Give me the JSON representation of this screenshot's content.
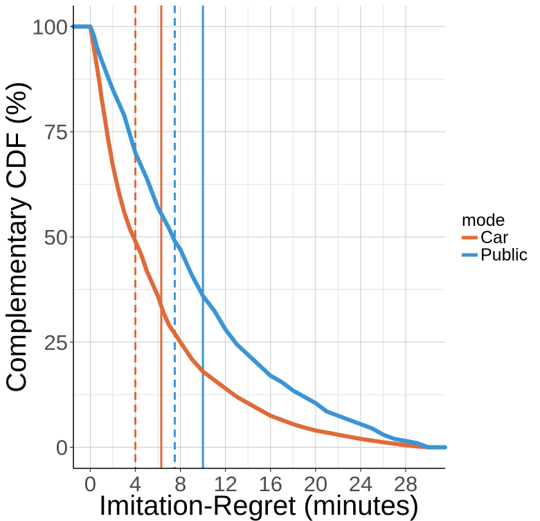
{
  "chart_data": {
    "type": "line",
    "title": "",
    "xlabel": "Imitation-Regret (minutes)",
    "ylabel": "Complementary CDF (%)",
    "xlim": [
      -1.5,
      31.5
    ],
    "ylim": [
      -5,
      105
    ],
    "xticks": [
      0,
      4,
      8,
      12,
      16,
      20,
      24,
      28
    ],
    "yticks": [
      0,
      25,
      50,
      75,
      100
    ],
    "grid": true,
    "legend": {
      "title": "mode",
      "position": "right"
    },
    "series": [
      {
        "name": "Car",
        "color": "#e06a3b",
        "x": [
          -1.5,
          0,
          0.2,
          0.5,
          0.8,
          1,
          1.3,
          1.6,
          2,
          2.5,
          3,
          3.5,
          4,
          4.5,
          5,
          5.5,
          6,
          6.5,
          7,
          7.5,
          8,
          9,
          10,
          11,
          12,
          13,
          14,
          15,
          16,
          17,
          18,
          19,
          20,
          22,
          24,
          26,
          28,
          29,
          30,
          31.5
        ],
        "y": [
          100,
          100,
          97,
          92,
          87,
          83,
          78,
          73,
          67,
          61,
          56,
          52,
          49,
          46,
          42,
          39,
          36,
          32,
          29,
          27,
          25,
          21,
          18,
          16,
          14,
          12,
          10.5,
          9,
          7.5,
          6.5,
          5.5,
          4.7,
          4,
          3,
          2,
          1.2,
          0.5,
          0.2,
          0,
          0
        ]
      },
      {
        "name": "Public",
        "color": "#3a95d6",
        "x": [
          -1.5,
          0,
          0.3,
          0.6,
          1,
          1.5,
          2,
          3,
          4,
          5,
          6,
          7,
          7.5,
          8,
          9,
          10,
          11,
          12,
          13,
          14,
          15,
          16,
          17,
          18,
          19,
          20,
          21,
          22,
          23,
          24,
          25,
          26,
          27,
          28,
          29,
          30,
          31.5
        ],
        "y": [
          100,
          100,
          98,
          95,
          92,
          88.5,
          85,
          79,
          70,
          64,
          57,
          52,
          49,
          47,
          41,
          36,
          32.5,
          28,
          24.5,
          22,
          19.5,
          17,
          15.5,
          13.5,
          12,
          10.5,
          8.5,
          7.5,
          6.5,
          5.5,
          4.5,
          3,
          2,
          1.5,
          1,
          0,
          0
        ]
      }
    ],
    "reference_lines": [
      {
        "series": "Car",
        "x": 4,
        "style": "dashed",
        "color": "#e06a3b"
      },
      {
        "series": "Car",
        "x": 6.3,
        "style": "solid",
        "color": "#e06a3b"
      },
      {
        "series": "Public",
        "x": 7.5,
        "style": "dashed",
        "color": "#3a95d6"
      },
      {
        "series": "Public",
        "x": 10,
        "style": "solid",
        "color": "#3a95d6"
      }
    ]
  }
}
